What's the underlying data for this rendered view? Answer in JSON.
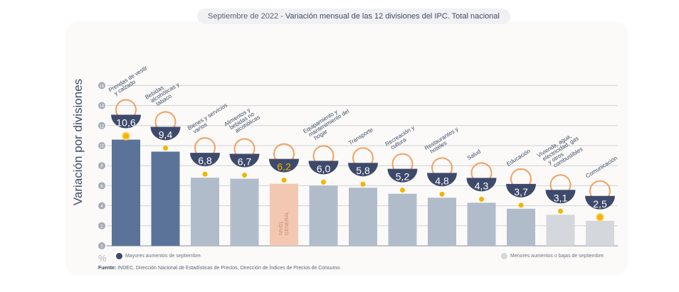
{
  "title": {
    "date": "Septiembre de 2022",
    "separator": " - ",
    "text": "Variación mensual de las 12 divisiones del IPC. Total nacional"
  },
  "chart_data": {
    "type": "bar",
    "ylabel": "Variación por divisiones",
    "yunit": "%",
    "ylim": [
      0,
      16
    ],
    "yticks": [
      0,
      2,
      4,
      6,
      8,
      10,
      12,
      14,
      16
    ],
    "grid": true,
    "categories": [
      "Prendas de vestir y calzado",
      "Bebidas alcohólicas y tabaco",
      "Bienes y servicios varios",
      "Alimentos y bebidas no alcohólicas",
      "Nivel general",
      "Equipamiento y mantenimiento del hogar",
      "Transporte",
      "Recreación y cultura",
      "Restaurantes y hoteles",
      "Salud",
      "Educación",
      "Vivienda, agua, electricidad, gas y otros combustibles",
      "Comunicación"
    ],
    "values": [
      10.6,
      9.4,
      6.8,
      6.7,
      6.2,
      6.0,
      5.8,
      5.2,
      4.8,
      4.3,
      3.7,
      3.1,
      2.5
    ],
    "value_labels": [
      "10,6",
      "9,4",
      "6,8",
      "6,7",
      "6,2",
      "6,0",
      "5,8",
      "5,2",
      "4,8",
      "4,3",
      "3,7",
      "3,1",
      "2,5"
    ],
    "groups": [
      "mayores",
      "mayores",
      "medio",
      "medio",
      "nivel",
      "medio",
      "medio",
      "medio",
      "medio",
      "medio",
      "medio",
      "menores",
      "menores"
    ],
    "nivel_general_label": "NIVEL GENERAL",
    "colors": {
      "mayores": "#5b7399",
      "medio": "#b1bccb",
      "menores": "#d4d7dc",
      "nivel": "#f3c8b3",
      "badge": "#3e4a6b",
      "marker": "#f4b400",
      "icon": "#ef8a3c"
    },
    "legend": [
      {
        "label": "Mayores aumentos de septiembre.",
        "color": "#3e4a6b",
        "placement": "bottom-left"
      },
      {
        "label": "Menores aumentos o bajas de septiembre.",
        "color": "#d4d7dc",
        "placement": "bottom-right"
      }
    ]
  },
  "source": {
    "label": "Fuente:",
    "text": " INDEC, Dirección Nacional de Estadísticas de Precios, Dirección de Índices de Precios de Consumo."
  }
}
